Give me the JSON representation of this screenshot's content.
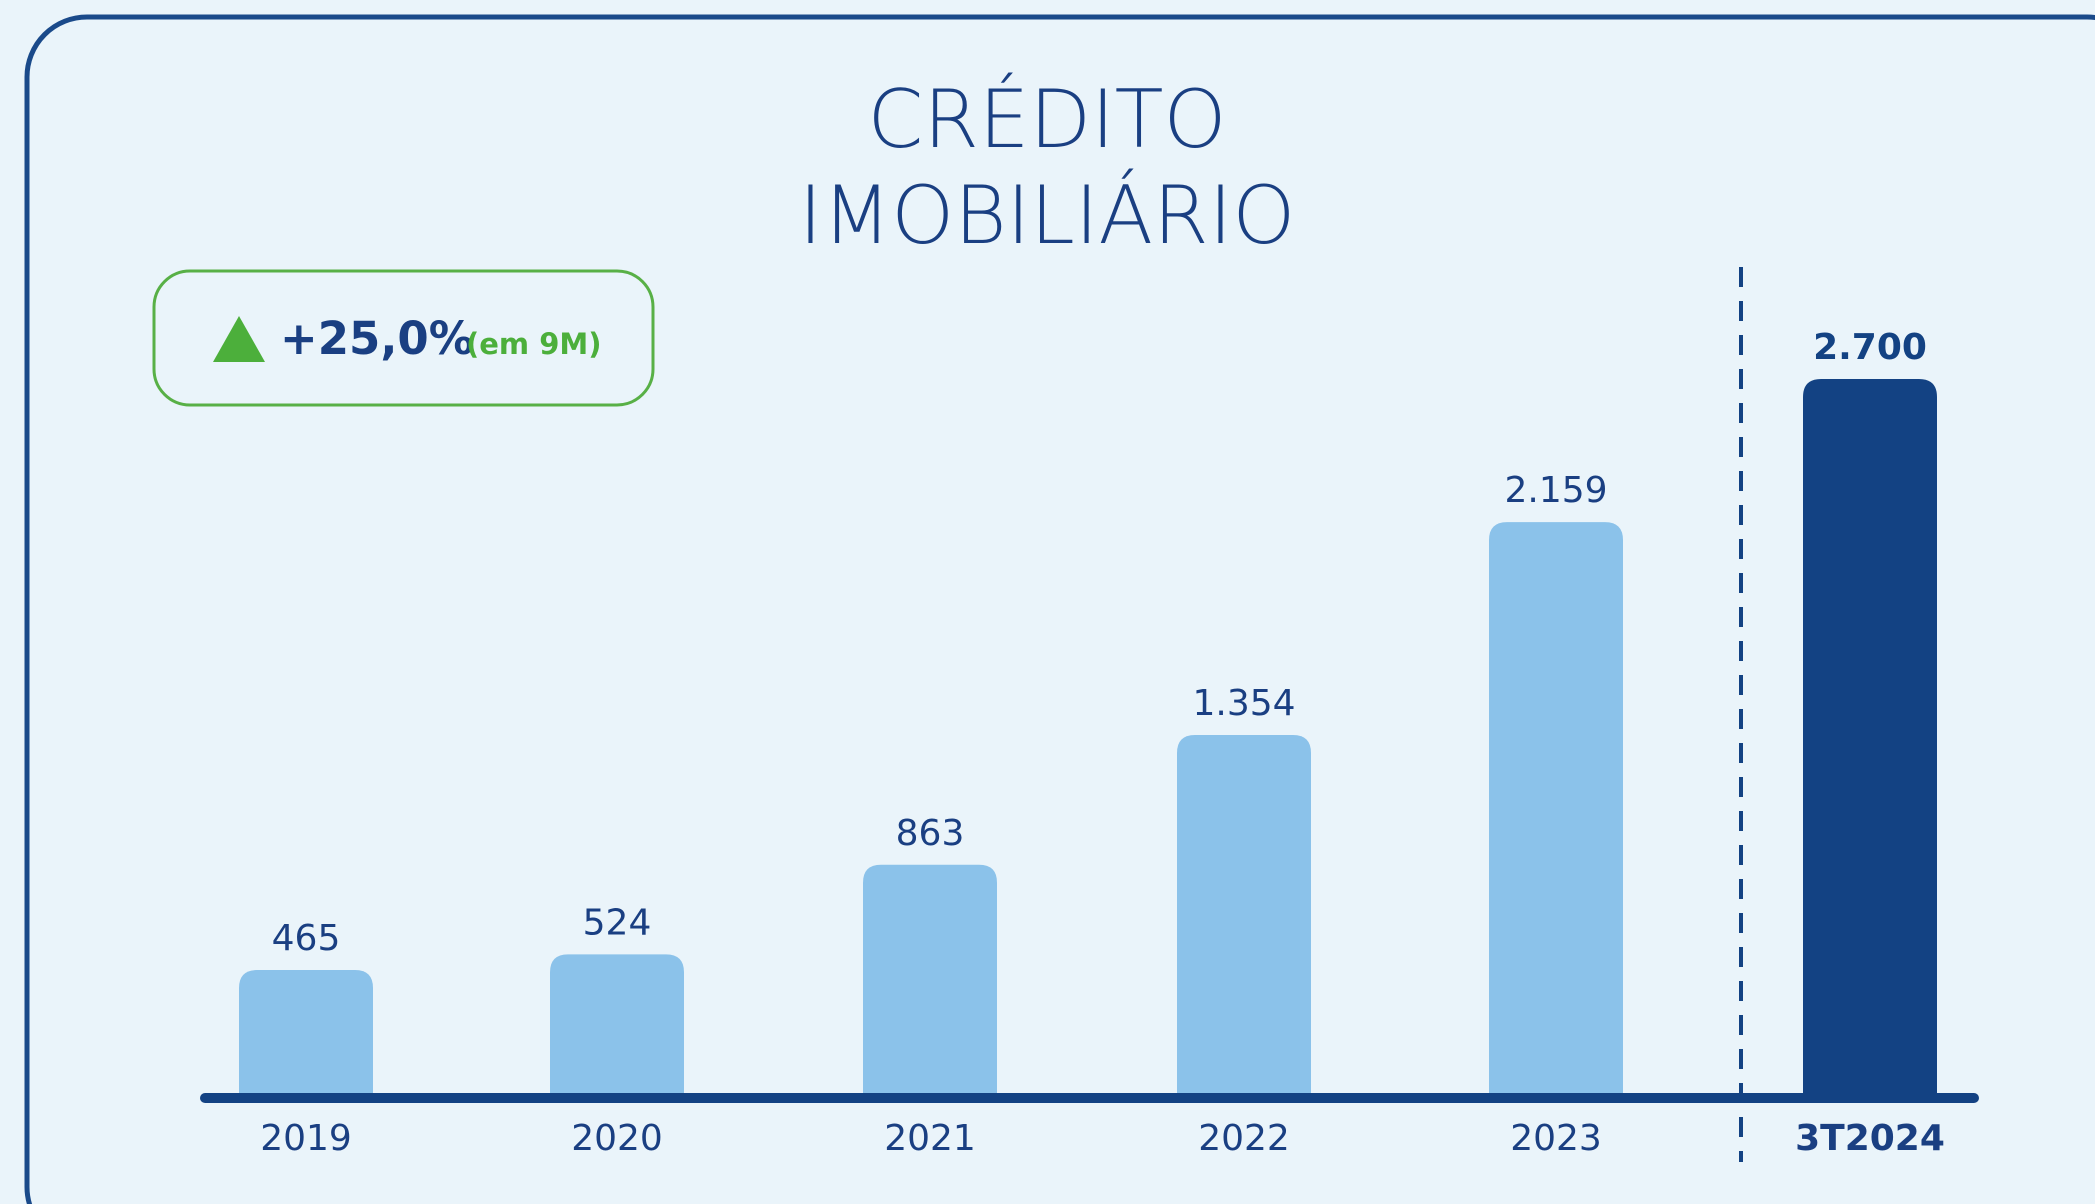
{
  "chart_data": {
    "type": "bar",
    "title": "CRÉDITO IMOBILIÁRIO",
    "badge": {
      "text": "+25,0%",
      "note": "(em 9M)"
    },
    "categories": [
      "2019",
      "2020",
      "2021",
      "2022",
      "2023",
      "3T2024"
    ],
    "values": [
      465,
      524,
      863,
      1354,
      2159,
      2700
    ],
    "value_labels": [
      "465",
      "524",
      "863",
      "1.354",
      "2.159",
      "2.700"
    ],
    "colors": [
      "#8bc2ea",
      "#8bc2ea",
      "#8bc2ea",
      "#8bc2ea",
      "#8bc2ea",
      "#134283"
    ]
  }
}
